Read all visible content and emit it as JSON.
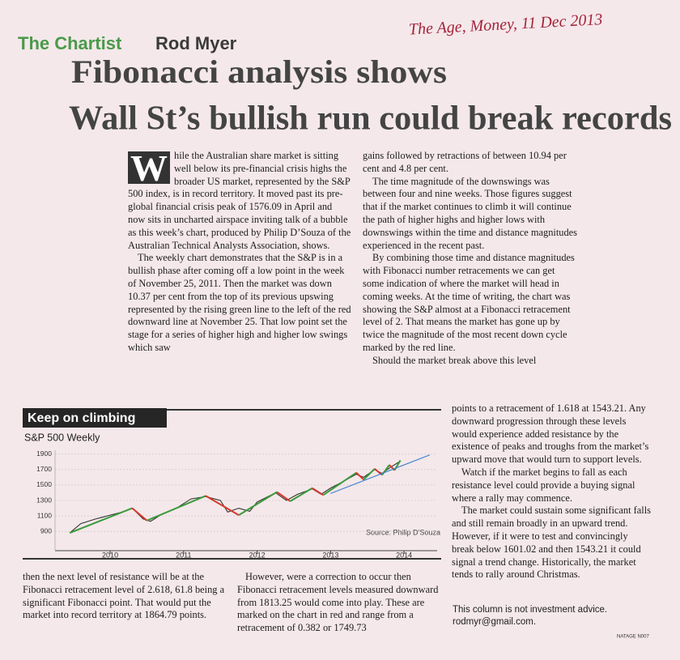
{
  "header": {
    "handwritten_note": "The Age, Money, 11 Dec 2013",
    "kicker": "The Chartist",
    "author": "Rod Myer",
    "headline": [
      "Fibonacci analysis shows",
      "Wall St’s bullish run could break records"
    ]
  },
  "article": {
    "drop_cap": "W",
    "columns": [
      [
        "hile the Australian share market is sitting well below its pre-financial crisis highs the broader US market, represented by the S&P 500 index, is in record territory. It moved past its pre-global financial crisis peak of 1576.09 in April and now sits in uncharted airspace inviting talk of a bubble as this week’s chart, produced by Philip D’Souza of the Australian Technical Analysts Association, shows.",
        "The weekly chart demonstrates that the S&P is in a bullish phase after coming off a low point in the week of November 25, 2011. Then the market was down 10.37 per cent from the top of its previous upswing represented by the rising green line to the left of the red downward line at November 25. That low point set the stage for a series of higher high and higher low swings which saw"
      ],
      [
        "gains followed by retractions of between 10.94 per cent and 4.8 per cent.",
        "The time magnitude of the downswings was between four and nine weeks. Those figures suggest that if the market continues to climb it will continue the path of higher highs and higher lows with downswings within the time and distance magnitudes experienced in the recent past.",
        "By combining those time and distance magnitudes with Fibonacci number retracements we can get some indication of where the market will head in coming weeks. At the time of writing, the chart was showing the S&P almost at a Fibonacci retracement level of 2. That means the market has gone up by twice the magnitude of the most recent down cycle marked by the red line.",
        "Should the market break above this level"
      ],
      [
        "then the next level of resistance will be at the Fibonacci retracement level of 2.618, 61.8 being a significant Fibonacci point. That would put the market into record territory at 1864.79 points."
      ],
      [
        "However, were a correction to occur then Fibonacci retracement levels measured downward from 1813.25 would come into play. These are marked on the chart in red and range from a retracement of 0.382 or 1749.73"
      ],
      [
        "points to a retracement of 1.618 at 1543.21. Any downward progression through these levels would experience added resistance by the existence of peaks and troughs from the market’s upward move that would turn to support levels.",
        "Watch if the market begins to fall as each resistance level could provide a buying signal where a rally may commence.",
        "The market could sustain some significant falls and still remain broadly in an upward trend. However, if it were to test and convincingly break below 1601.02 and then 1543.21 it could signal a trend change. Historically, the market tends to rally around Christmas."
      ]
    ]
  },
  "footer": {
    "disclaimer": "This column is not investment advice.",
    "email": "rodmyr@gmail.com.",
    "page_code": "NATAGE N007"
  },
  "chart_data": {
    "type": "line",
    "title": "Keep on climbing",
    "subtitle": "S&P 500 Weekly",
    "source": "Source: Philip D’Souza",
    "xlim": [
      2009.25,
      2014.45
    ],
    "xticks": [
      2010,
      2011,
      2012,
      2013,
      2014
    ],
    "ylim": [
      650,
      1950
    ],
    "yticks": [
      900,
      1100,
      1300,
      1500,
      1700,
      1900
    ],
    "grid": true,
    "series": [
      {
        "color": "#333333",
        "x": [
          2009.45,
          2009.6,
          2009.8,
          2010.0,
          2010.2,
          2010.3,
          2010.45,
          2010.55,
          2010.7,
          2010.9,
          2011.1,
          2011.3,
          2011.5,
          2011.6,
          2011.75,
          2011.9,
          2012.0,
          2012.25,
          2012.4,
          2012.55,
          2012.75,
          2012.87,
          2013.0,
          2013.2,
          2013.35,
          2013.45,
          2013.6,
          2013.7,
          2013.8,
          2013.95
        ],
        "values": [
          880,
          1000,
          1060,
          1110,
          1160,
          1200,
          1060,
          1030,
          1120,
          1200,
          1320,
          1350,
          1300,
          1150,
          1200,
          1160,
          1280,
          1400,
          1300,
          1380,
          1450,
          1380,
          1460,
          1560,
          1640,
          1600,
          1700,
          1650,
          1720,
          1810
        ]
      },
      {
        "up_color": "#3c9a3c",
        "down_color": "#d8392b",
        "x": [
          2009.45,
          2010.3,
          2010.5,
          2011.3,
          2011.75,
          2012.27,
          2012.45,
          2012.75,
          2012.9,
          2013.35,
          2013.45,
          2013.6,
          2013.7,
          2013.8,
          2013.87,
          2013.95
        ],
        "values": [
          880,
          1200,
          1040,
          1360,
          1110,
          1410,
          1290,
          1460,
          1370,
          1660,
          1570,
          1710,
          1630,
          1760,
          1690,
          1820
        ]
      },
      {
        "color": "#3b7fd0",
        "x": [
          2013.0,
          2014.35
        ],
        "values": [
          1390,
          1890
        ]
      }
    ]
  }
}
